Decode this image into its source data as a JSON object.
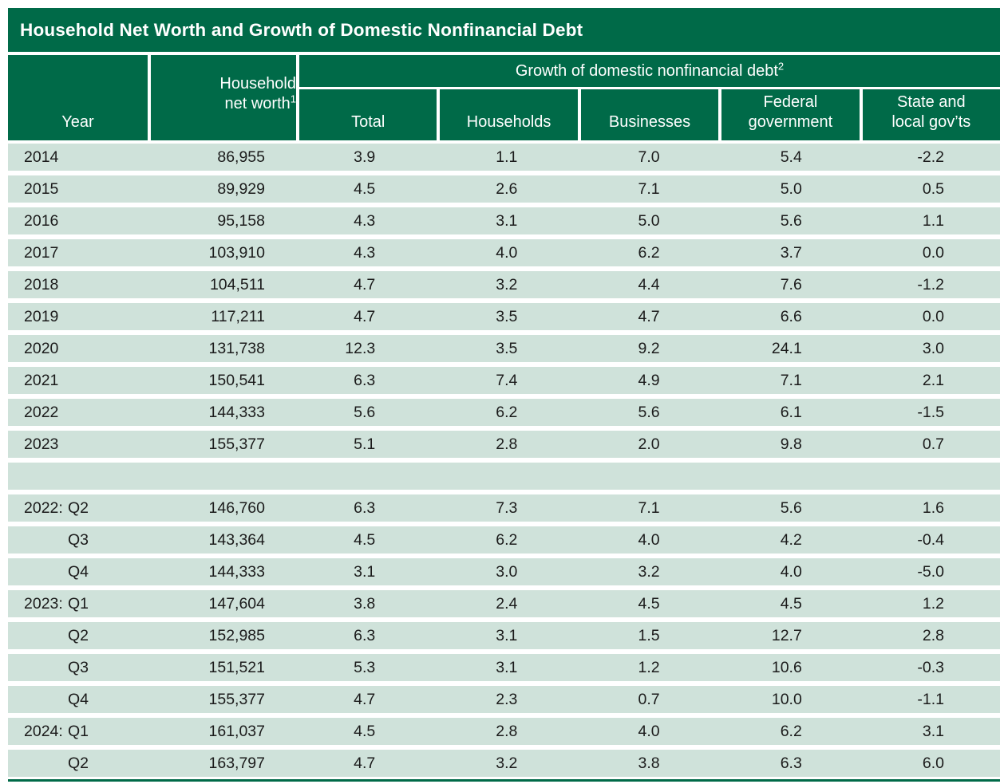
{
  "colors": {
    "header_green": "#006a48",
    "row_green": "#cfe2da",
    "text_dark": "#1b1b1b",
    "header_text": "#ffffff"
  },
  "table": {
    "title": "Household Net Worth and Growth of Domestic Nonfinancial Debt",
    "header": {
      "year_label": "Year",
      "net_worth_line1": "Household",
      "net_worth_line2": "net worth",
      "net_worth_sup": "1",
      "group_label": "Growth of domestic nonfinancial debt",
      "group_sup": "2",
      "subcolumns": [
        "Total",
        "Households",
        "Businesses",
        "Federal\ngovernment",
        "State and\nlocal gov’ts"
      ]
    },
    "rows": [
      {
        "year": "2014",
        "quarter": "",
        "net_worth": "86,955",
        "values": [
          "3.9",
          "1.1",
          "7.0",
          "5.4",
          "-2.2"
        ]
      },
      {
        "year": "2015",
        "quarter": "",
        "net_worth": "89,929",
        "values": [
          "4.5",
          "2.6",
          "7.1",
          "5.0",
          "0.5"
        ]
      },
      {
        "year": "2016",
        "quarter": "",
        "net_worth": "95,158",
        "values": [
          "4.3",
          "3.1",
          "5.0",
          "5.6",
          "1.1"
        ]
      },
      {
        "year": "2017",
        "quarter": "",
        "net_worth": "103,910",
        "values": [
          "4.3",
          "4.0",
          "6.2",
          "3.7",
          "0.0"
        ]
      },
      {
        "year": "2018",
        "quarter": "",
        "net_worth": "104,511",
        "values": [
          "4.7",
          "3.2",
          "4.4",
          "7.6",
          "-1.2"
        ]
      },
      {
        "year": "2019",
        "quarter": "",
        "net_worth": "117,211",
        "values": [
          "4.7",
          "3.5",
          "4.7",
          "6.6",
          "0.0"
        ]
      },
      {
        "year": "2020",
        "quarter": "",
        "net_worth": "131,738",
        "values": [
          "12.3",
          "3.5",
          "9.2",
          "24.1",
          "3.0"
        ]
      },
      {
        "year": "2021",
        "quarter": "",
        "net_worth": "150,541",
        "values": [
          "6.3",
          "7.4",
          "4.9",
          "7.1",
          "2.1"
        ]
      },
      {
        "year": "2022",
        "quarter": "",
        "net_worth": "144,333",
        "values": [
          "5.6",
          "6.2",
          "5.6",
          "6.1",
          "-1.5"
        ]
      },
      {
        "year": "2023",
        "quarter": "",
        "net_worth": "155,377",
        "values": [
          "5.1",
          "2.8",
          "2.0",
          "9.8",
          "0.7"
        ]
      },
      {
        "year": "",
        "quarter": "",
        "net_worth": "",
        "values": [
          "",
          "",
          "",
          "",
          ""
        ]
      },
      {
        "year": "2022:",
        "quarter": "Q2",
        "net_worth": "146,760",
        "values": [
          "6.3",
          "7.3",
          "7.1",
          "5.6",
          "1.6"
        ]
      },
      {
        "year": "",
        "quarter": "Q3",
        "net_worth": "143,364",
        "values": [
          "4.5",
          "6.2",
          "4.0",
          "4.2",
          "-0.4"
        ]
      },
      {
        "year": "",
        "quarter": "Q4",
        "net_worth": "144,333",
        "values": [
          "3.1",
          "3.0",
          "3.2",
          "4.0",
          "-5.0"
        ]
      },
      {
        "year": "2023:",
        "quarter": "Q1",
        "net_worth": "147,604",
        "values": [
          "3.8",
          "2.4",
          "4.5",
          "4.5",
          "1.2"
        ]
      },
      {
        "year": "",
        "quarter": "Q2",
        "net_worth": "152,985",
        "values": [
          "6.3",
          "3.1",
          "1.5",
          "12.7",
          "2.8"
        ]
      },
      {
        "year": "",
        "quarter": "Q3",
        "net_worth": "151,521",
        "values": [
          "5.3",
          "3.1",
          "1.2",
          "10.6",
          "-0.3"
        ]
      },
      {
        "year": "",
        "quarter": "Q4",
        "net_worth": "155,377",
        "values": [
          "4.7",
          "2.3",
          "0.7",
          "10.0",
          "-1.1"
        ]
      },
      {
        "year": "2024:",
        "quarter": "Q1",
        "net_worth": "161,037",
        "values": [
          "4.5",
          "2.8",
          "4.0",
          "6.2",
          "3.1"
        ]
      },
      {
        "year": "",
        "quarter": "Q2",
        "net_worth": "163,797",
        "values": [
          "4.7",
          "3.2",
          "3.8",
          "6.3",
          "6.0"
        ]
      }
    ]
  }
}
